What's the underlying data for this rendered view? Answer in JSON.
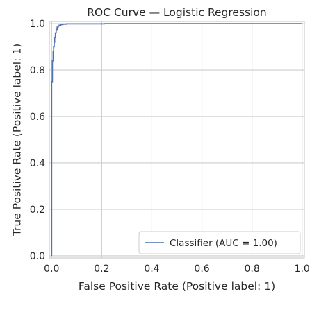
{
  "chart_data": {
    "type": "line",
    "title": "ROC Curve — Logistic Regression",
    "xlabel": "False Positive Rate (Positive label: 1)",
    "ylabel": "True Positive Rate (Positive label: 1)",
    "xlim": [
      0.0,
      1.0
    ],
    "ylim": [
      0.0,
      1.0
    ],
    "xticks": [
      0.0,
      0.2,
      0.4,
      0.6,
      0.8,
      1.0
    ],
    "yticks": [
      0.0,
      0.2,
      0.4,
      0.6,
      0.8,
      1.0
    ],
    "xtick_labels": [
      "0.0",
      "0.2",
      "0.4",
      "0.6",
      "0.8",
      "1.0"
    ],
    "ytick_labels": [
      "0.0",
      "0.2",
      "0.4",
      "0.6",
      "0.8",
      "1.0"
    ],
    "grid": true,
    "legend_position": "lower-right",
    "series": [
      {
        "name": "Classifier (AUC = 1.00)",
        "color": "#4c72b0",
        "x": [
          0.0,
          0.0,
          0.003,
          0.003,
          0.006,
          0.006,
          0.008,
          0.008,
          0.01,
          0.01,
          0.012,
          0.012,
          0.015,
          0.015,
          0.018,
          0.018,
          0.022,
          0.022,
          0.026,
          0.026,
          0.03,
          0.03,
          0.036,
          0.036,
          0.045,
          0.045,
          0.06,
          0.06,
          0.21,
          0.21,
          1.0
        ],
        "y": [
          0.0,
          0.75,
          0.75,
          0.84,
          0.84,
          0.88,
          0.88,
          0.9,
          0.9,
          0.92,
          0.92,
          0.94,
          0.94,
          0.96,
          0.96,
          0.975,
          0.975,
          0.985,
          0.985,
          0.99,
          0.99,
          0.993,
          0.993,
          0.996,
          0.996,
          0.998,
          0.998,
          0.999,
          0.999,
          1.0,
          1.0
        ]
      }
    ]
  }
}
